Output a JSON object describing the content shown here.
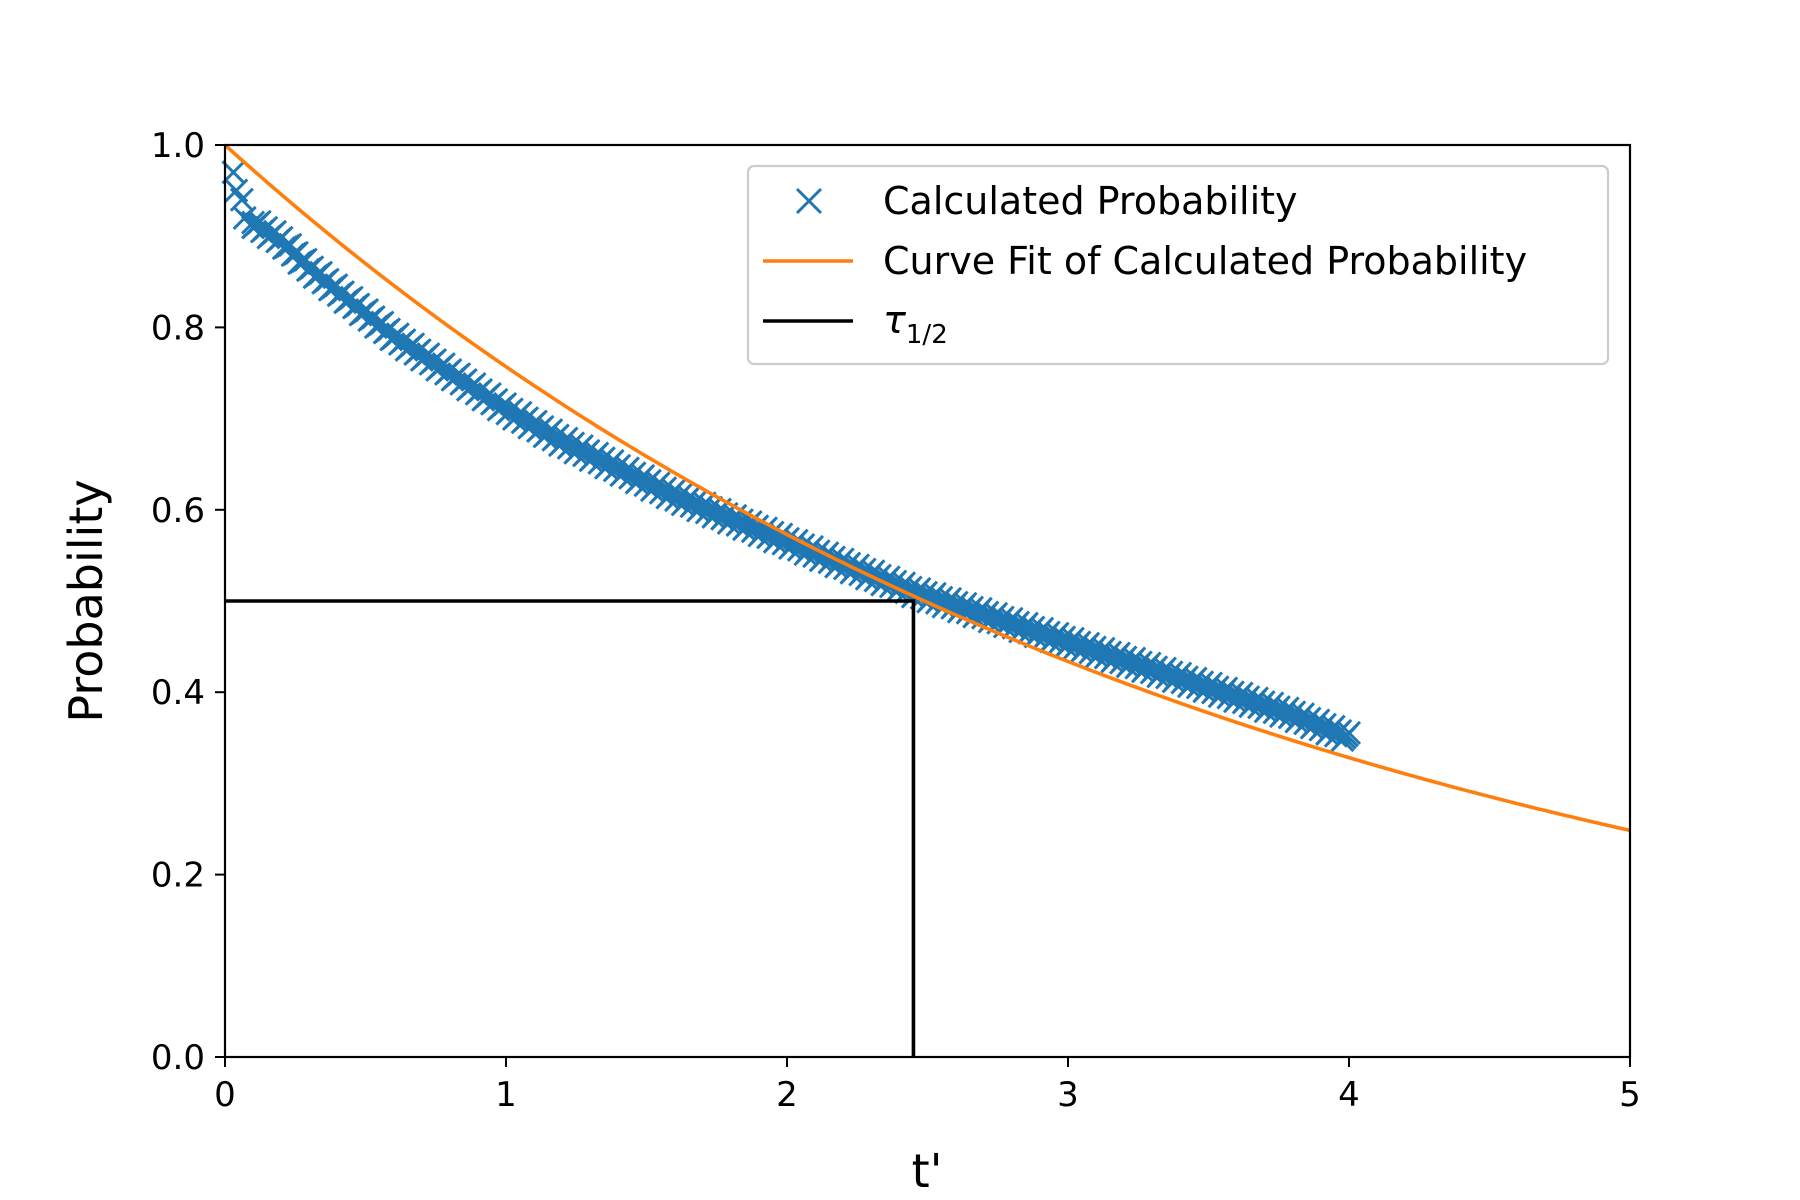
{
  "chart_data": {
    "type": "scatter",
    "title": "",
    "xlabel": "t'",
    "ylabel": "Probability",
    "xlim": [
      0,
      5
    ],
    "ylim": [
      0,
      1.0
    ],
    "x_ticks": [
      0,
      1,
      2,
      3,
      4,
      5
    ],
    "x_tick_labels": [
      "0",
      "1",
      "2",
      "3",
      "4",
      "5"
    ],
    "y_ticks": [
      0.0,
      0.2,
      0.4,
      0.6,
      0.8,
      1.0
    ],
    "y_tick_labels": [
      "0.0",
      "0.2",
      "0.4",
      "0.6",
      "0.8",
      "1.0"
    ],
    "grid": false,
    "legend_position": "top-right",
    "series": [
      {
        "name": "Calculated Probability",
        "kind": "scatter-marker-x",
        "color": "#1f77b4",
        "x_range": [
          0.0,
          4.0
        ],
        "points": [
          {
            "x": 0.03,
            "y": 0.97
          },
          {
            "x": 0.04,
            "y": 0.95
          },
          {
            "x": 0.06,
            "y": 0.94
          },
          {
            "x": 0.07,
            "y": 0.92
          },
          {
            "x": 0.1,
            "y": 0.915
          },
          {
            "x": 0.2,
            "y": 0.895
          },
          {
            "x": 0.3,
            "y": 0.865
          },
          {
            "x": 0.4,
            "y": 0.84
          },
          {
            "x": 0.5,
            "y": 0.815
          },
          {
            "x": 0.6,
            "y": 0.79
          },
          {
            "x": 0.7,
            "y": 0.77
          },
          {
            "x": 0.8,
            "y": 0.75
          },
          {
            "x": 0.9,
            "y": 0.73
          },
          {
            "x": 1.0,
            "y": 0.71
          },
          {
            "x": 1.2,
            "y": 0.675
          },
          {
            "x": 1.4,
            "y": 0.645
          },
          {
            "x": 1.6,
            "y": 0.615
          },
          {
            "x": 1.8,
            "y": 0.59
          },
          {
            "x": 2.0,
            "y": 0.565
          },
          {
            "x": 2.2,
            "y": 0.54
          },
          {
            "x": 2.45,
            "y": 0.51
          },
          {
            "x": 2.6,
            "y": 0.495
          },
          {
            "x": 2.8,
            "y": 0.475
          },
          {
            "x": 3.0,
            "y": 0.455
          },
          {
            "x": 3.2,
            "y": 0.435
          },
          {
            "x": 3.4,
            "y": 0.415
          },
          {
            "x": 3.6,
            "y": 0.395
          },
          {
            "x": 3.8,
            "y": 0.375
          },
          {
            "x": 4.0,
            "y": 0.35
          }
        ]
      },
      {
        "name": "Curve Fit of Calculated Probability",
        "kind": "line",
        "color": "#ff7f0e",
        "function": "exp(-k*t)",
        "k": 0.2785,
        "x_range": [
          0,
          5
        ]
      },
      {
        "name": "τ1/2",
        "kind": "half-life-marker",
        "color": "#000000",
        "x": 2.45,
        "y": 0.5
      }
    ],
    "legend": {
      "entries": [
        "Calculated Probability",
        "Curve Fit of Calculated Probability",
        "τ"
      ],
      "tau_subscript": "1/2"
    }
  }
}
